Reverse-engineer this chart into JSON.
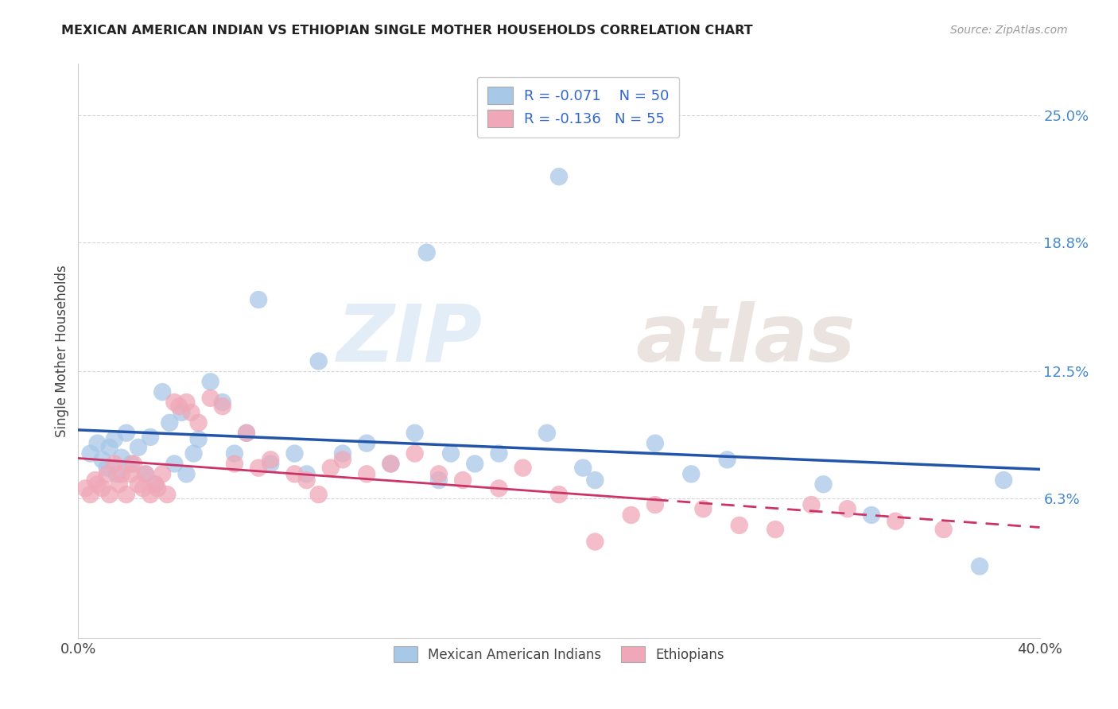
{
  "title": "MEXICAN AMERICAN INDIAN VS ETHIOPIAN SINGLE MOTHER HOUSEHOLDS CORRELATION CHART",
  "source": "Source: ZipAtlas.com",
  "ylabel": "Single Mother Households",
  "xlim": [
    0.0,
    0.4
  ],
  "ylim": [
    -0.005,
    0.275
  ],
  "yticks": [
    0.063,
    0.125,
    0.188,
    0.25
  ],
  "ytick_labels": [
    "6.3%",
    "12.5%",
    "18.8%",
    "25.0%"
  ],
  "xticks": [
    0.0,
    0.1,
    0.2,
    0.3,
    0.4
  ],
  "xtick_labels": [
    "0.0%",
    "",
    "",
    "",
    "40.0%"
  ],
  "blue_R": -0.071,
  "blue_N": 50,
  "pink_R": -0.136,
  "pink_N": 55,
  "blue_color": "#a8c8e8",
  "pink_color": "#f0a8b8",
  "blue_line_color": "#2255aa",
  "pink_line_color": "#cc3366",
  "watermark_zip": "ZIP",
  "watermark_atlas": "atlas",
  "legend_label_blue": "Mexican American Indians",
  "legend_label_pink": "Ethiopians",
  "blue_scatter_x": [
    0.005,
    0.008,
    0.01,
    0.012,
    0.013,
    0.015,
    0.016,
    0.018,
    0.02,
    0.022,
    0.025,
    0.028,
    0.03,
    0.032,
    0.035,
    0.038,
    0.04,
    0.043,
    0.045,
    0.048,
    0.05,
    0.055,
    0.06,
    0.065,
    0.07,
    0.075,
    0.08,
    0.09,
    0.095,
    0.1,
    0.11,
    0.12,
    0.13,
    0.14,
    0.145,
    0.15,
    0.155,
    0.165,
    0.175,
    0.195,
    0.2,
    0.21,
    0.215,
    0.24,
    0.255,
    0.27,
    0.31,
    0.33,
    0.375,
    0.385
  ],
  "blue_scatter_y": [
    0.085,
    0.09,
    0.082,
    0.078,
    0.088,
    0.092,
    0.075,
    0.083,
    0.095,
    0.08,
    0.088,
    0.075,
    0.093,
    0.07,
    0.115,
    0.1,
    0.08,
    0.105,
    0.075,
    0.085,
    0.092,
    0.12,
    0.11,
    0.085,
    0.095,
    0.16,
    0.08,
    0.085,
    0.075,
    0.13,
    0.085,
    0.09,
    0.08,
    0.095,
    0.183,
    0.072,
    0.085,
    0.08,
    0.085,
    0.095,
    0.22,
    0.078,
    0.072,
    0.09,
    0.075,
    0.082,
    0.07,
    0.055,
    0.03,
    0.072
  ],
  "pink_scatter_x": [
    0.003,
    0.005,
    0.007,
    0.008,
    0.01,
    0.012,
    0.013,
    0.015,
    0.017,
    0.018,
    0.02,
    0.022,
    0.023,
    0.025,
    0.027,
    0.028,
    0.03,
    0.032,
    0.033,
    0.035,
    0.037,
    0.04,
    0.042,
    0.045,
    0.047,
    0.05,
    0.055,
    0.06,
    0.065,
    0.07,
    0.075,
    0.08,
    0.09,
    0.095,
    0.1,
    0.105,
    0.11,
    0.12,
    0.13,
    0.14,
    0.15,
    0.16,
    0.175,
    0.185,
    0.2,
    0.215,
    0.23,
    0.24,
    0.26,
    0.275,
    0.29,
    0.305,
    0.32,
    0.34,
    0.36
  ],
  "pink_scatter_y": [
    0.068,
    0.065,
    0.072,
    0.07,
    0.068,
    0.075,
    0.065,
    0.08,
    0.07,
    0.075,
    0.065,
    0.075,
    0.08,
    0.07,
    0.068,
    0.075,
    0.065,
    0.07,
    0.068,
    0.075,
    0.065,
    0.11,
    0.108,
    0.11,
    0.105,
    0.1,
    0.112,
    0.108,
    0.08,
    0.095,
    0.078,
    0.082,
    0.075,
    0.072,
    0.065,
    0.078,
    0.082,
    0.075,
    0.08,
    0.085,
    0.075,
    0.072,
    0.068,
    0.078,
    0.065,
    0.042,
    0.055,
    0.06,
    0.058,
    0.05,
    0.048,
    0.06,
    0.058,
    0.052,
    0.048
  ]
}
